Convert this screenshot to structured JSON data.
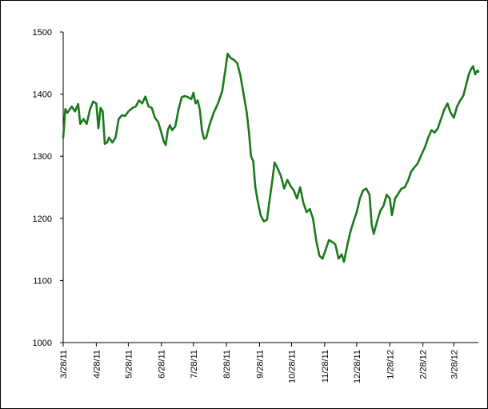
{
  "chart_data": {
    "type": "line",
    "title": "",
    "xlabel": "",
    "ylabel": "",
    "ylim": [
      1000,
      1500
    ],
    "y_ticks": [
      1000,
      1100,
      1200,
      1300,
      1400,
      1500
    ],
    "x_ticks": [
      "3/28/11",
      "4/28/11",
      "5/28/11",
      "6/28/11",
      "7/28/11",
      "8/28/11",
      "9/28/11",
      "10/28/11",
      "11/28/11",
      "12/28/11",
      "1/28/12",
      "2/28/12",
      "3/28/12"
    ],
    "x_range": [
      "2011-03-28",
      "2012-04-20"
    ],
    "grid": false,
    "legend": "none",
    "line_color": "#1a7a1a",
    "series": [
      {
        "name": "",
        "points": [
          [
            "2011-03-28",
            1330
          ],
          [
            "2011-03-30",
            1376
          ],
          [
            "2011-04-01",
            1370
          ],
          [
            "2011-04-05",
            1380
          ],
          [
            "2011-04-08",
            1372
          ],
          [
            "2011-04-11",
            1384
          ],
          [
            "2011-04-13",
            1352
          ],
          [
            "2011-04-16",
            1360
          ],
          [
            "2011-04-19",
            1352
          ],
          [
            "2011-04-22",
            1375
          ],
          [
            "2011-04-25",
            1388
          ],
          [
            "2011-04-28",
            1385
          ],
          [
            "2011-04-30",
            1345
          ],
          [
            "2011-05-02",
            1378
          ],
          [
            "2011-05-04",
            1372
          ],
          [
            "2011-05-06",
            1320
          ],
          [
            "2011-05-08",
            1322
          ],
          [
            "2011-05-10",
            1330
          ],
          [
            "2011-05-13",
            1322
          ],
          [
            "2011-05-16",
            1330
          ],
          [
            "2011-05-19",
            1360
          ],
          [
            "2011-05-22",
            1366
          ],
          [
            "2011-05-25",
            1365
          ],
          [
            "2011-05-28",
            1372
          ],
          [
            "2011-06-01",
            1378
          ],
          [
            "2011-06-04",
            1380
          ],
          [
            "2011-06-07",
            1390
          ],
          [
            "2011-06-10",
            1385
          ],
          [
            "2011-06-13",
            1396
          ],
          [
            "2011-06-16",
            1380
          ],
          [
            "2011-06-19",
            1378
          ],
          [
            "2011-06-22",
            1362
          ],
          [
            "2011-06-25",
            1355
          ],
          [
            "2011-06-28",
            1338
          ],
          [
            "2011-06-30",
            1325
          ],
          [
            "2011-07-02",
            1318
          ],
          [
            "2011-07-04",
            1342
          ],
          [
            "2011-07-06",
            1350
          ],
          [
            "2011-07-08",
            1342
          ],
          [
            "2011-07-11",
            1348
          ],
          [
            "2011-07-14",
            1375
          ],
          [
            "2011-07-17",
            1395
          ],
          [
            "2011-07-20",
            1397
          ],
          [
            "2011-07-23",
            1395
          ],
          [
            "2011-07-26",
            1392
          ],
          [
            "2011-07-28",
            1402
          ],
          [
            "2011-07-30",
            1385
          ],
          [
            "2011-08-01",
            1390
          ],
          [
            "2011-08-03",
            1375
          ],
          [
            "2011-08-05",
            1342
          ],
          [
            "2011-08-07",
            1328
          ],
          [
            "2011-08-09",
            1330
          ],
          [
            "2011-08-12",
            1350
          ],
          [
            "2011-08-16",
            1370
          ],
          [
            "2011-08-20",
            1385
          ],
          [
            "2011-08-24",
            1405
          ],
          [
            "2011-08-27",
            1440
          ],
          [
            "2011-08-29",
            1465
          ],
          [
            "2011-09-01",
            1458
          ],
          [
            "2011-09-04",
            1455
          ],
          [
            "2011-09-07",
            1450
          ],
          [
            "2011-09-10",
            1430
          ],
          [
            "2011-09-13",
            1400
          ],
          [
            "2011-09-16",
            1370
          ],
          [
            "2011-09-18",
            1340
          ],
          [
            "2011-09-20",
            1300
          ],
          [
            "2011-09-22",
            1292
          ],
          [
            "2011-09-24",
            1250
          ],
          [
            "2011-09-26",
            1230
          ],
          [
            "2011-09-29",
            1205
          ],
          [
            "2011-10-02",
            1195
          ],
          [
            "2011-10-05",
            1198
          ],
          [
            "2011-10-07",
            1225
          ],
          [
            "2011-10-10",
            1262
          ],
          [
            "2011-10-12",
            1290
          ],
          [
            "2011-10-15",
            1280
          ],
          [
            "2011-10-18",
            1268
          ],
          [
            "2011-10-21",
            1248
          ],
          [
            "2011-10-24",
            1262
          ],
          [
            "2011-10-27",
            1252
          ],
          [
            "2011-10-30",
            1245
          ],
          [
            "2011-11-02",
            1232
          ],
          [
            "2011-11-05",
            1250
          ],
          [
            "2011-11-08",
            1225
          ],
          [
            "2011-11-11",
            1210
          ],
          [
            "2011-11-14",
            1215
          ],
          [
            "2011-11-17",
            1200
          ],
          [
            "2011-11-20",
            1165
          ],
          [
            "2011-11-23",
            1140
          ],
          [
            "2011-11-26",
            1135
          ],
          [
            "2011-11-29",
            1150
          ],
          [
            "2011-12-02",
            1165
          ],
          [
            "2011-12-05",
            1162
          ],
          [
            "2011-12-08",
            1158
          ],
          [
            "2011-12-11",
            1135
          ],
          [
            "2011-12-14",
            1142
          ],
          [
            "2011-12-16",
            1130
          ],
          [
            "2011-12-19",
            1155
          ],
          [
            "2011-12-22",
            1178
          ],
          [
            "2011-12-25",
            1195
          ],
          [
            "2011-12-28",
            1210
          ],
          [
            "2011-12-31",
            1232
          ],
          [
            "2012-01-03",
            1245
          ],
          [
            "2012-01-06",
            1248
          ],
          [
            "2012-01-09",
            1238
          ],
          [
            "2012-01-11",
            1190
          ],
          [
            "2012-01-13",
            1175
          ],
          [
            "2012-01-16",
            1195
          ],
          [
            "2012-01-19",
            1212
          ],
          [
            "2012-01-22",
            1220
          ],
          [
            "2012-01-25",
            1238
          ],
          [
            "2012-01-28",
            1232
          ],
          [
            "2012-01-30",
            1205
          ],
          [
            "2012-02-02",
            1232
          ],
          [
            "2012-02-05",
            1240
          ],
          [
            "2012-02-08",
            1248
          ],
          [
            "2012-02-11",
            1250
          ],
          [
            "2012-02-14",
            1260
          ],
          [
            "2012-02-17",
            1275
          ],
          [
            "2012-02-20",
            1282
          ],
          [
            "2012-02-23",
            1288
          ],
          [
            "2012-02-26",
            1300
          ],
          [
            "2012-03-01",
            1315
          ],
          [
            "2012-03-04",
            1330
          ],
          [
            "2012-03-07",
            1342
          ],
          [
            "2012-03-10",
            1338
          ],
          [
            "2012-03-13",
            1345
          ],
          [
            "2012-03-16",
            1360
          ],
          [
            "2012-03-19",
            1375
          ],
          [
            "2012-03-22",
            1385
          ],
          [
            "2012-03-25",
            1370
          ],
          [
            "2012-03-28",
            1362
          ],
          [
            "2012-03-31",
            1380
          ],
          [
            "2012-04-03",
            1390
          ],
          [
            "2012-04-06",
            1398
          ],
          [
            "2012-04-09",
            1418
          ],
          [
            "2012-04-11",
            1432
          ],
          [
            "2012-04-13",
            1440
          ],
          [
            "2012-04-15",
            1445
          ],
          [
            "2012-04-17",
            1432
          ],
          [
            "2012-04-19",
            1438
          ],
          [
            "2012-04-20",
            1436
          ]
        ]
      }
    ]
  }
}
